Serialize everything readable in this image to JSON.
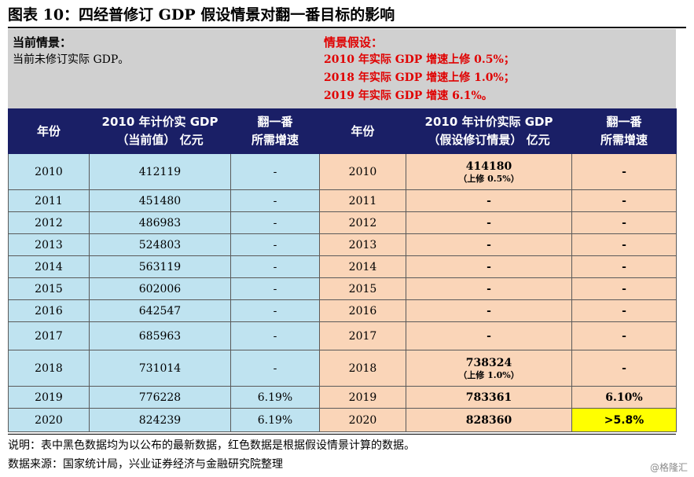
{
  "title": "图表 10：四经普修订 GDP 假设情景对翻一番目标的影响",
  "left_panel": {
    "heading": "当前情景：",
    "text": "当前未修订实际 GDP。"
  },
  "right_panel": {
    "heading": "情景假设：",
    "lines": [
      "2010 年实际 GDP 增速上修 0.5%；",
      "2018 年实际 GDP 增速上修 1.0%；",
      "2019 年实际 GDP 增速 6.1%。"
    ]
  },
  "headers": {
    "year_left": "年份",
    "gdp_left": [
      "2010 年计价实 GDP",
      "（当前值） 亿元"
    ],
    "rate_left": [
      "翻一番",
      "所需增速"
    ],
    "year_right": "年份",
    "gdp_right": [
      "2010 年计价实际 GDP",
      "（假设修订情景） 亿元"
    ],
    "rate_right": [
      "翻一番",
      "所需增速"
    ]
  },
  "rows": [
    {
      "year": "2010",
      "gdp": "412119",
      "gdp_red": false,
      "rate": "-",
      "rate_red": false,
      "year2": "2010",
      "gdp2": "414180",
      "gdp2_note": "（上修 0.5%）",
      "gdp2_red": true,
      "rate2": "-",
      "rate2_red": false,
      "rate2_highlight": false
    },
    {
      "year": "2011",
      "gdp": "451480",
      "gdp_red": false,
      "rate": "-",
      "rate_red": false,
      "year2": "2011",
      "gdp2": "-",
      "gdp2_note": "",
      "gdp2_red": false,
      "rate2": "-",
      "rate2_red": false,
      "rate2_highlight": false
    },
    {
      "year": "2012",
      "gdp": "486983",
      "gdp_red": false,
      "rate": "-",
      "rate_red": false,
      "year2": "2012",
      "gdp2": "-",
      "gdp2_note": "",
      "gdp2_red": false,
      "rate2": "-",
      "rate2_red": false,
      "rate2_highlight": false
    },
    {
      "year": "2013",
      "gdp": "524803",
      "gdp_red": false,
      "rate": "-",
      "rate_red": false,
      "year2": "2013",
      "gdp2": "-",
      "gdp2_note": "",
      "gdp2_red": false,
      "rate2": "-",
      "rate2_red": false,
      "rate2_highlight": false
    },
    {
      "year": "2014",
      "gdp": "563119",
      "gdp_red": false,
      "rate": "-",
      "rate_red": false,
      "year2": "2014",
      "gdp2": "-",
      "gdp2_note": "",
      "gdp2_red": false,
      "rate2": "-",
      "rate2_red": false,
      "rate2_highlight": false
    },
    {
      "year": "2015",
      "gdp": "602006",
      "gdp_red": false,
      "rate": "-",
      "rate_red": false,
      "year2": "2015",
      "gdp2": "-",
      "gdp2_note": "",
      "gdp2_red": false,
      "rate2": "-",
      "rate2_red": false,
      "rate2_highlight": false
    },
    {
      "year": "2016",
      "gdp": "642547",
      "gdp_red": false,
      "rate": "-",
      "rate_red": false,
      "year2": "2016",
      "gdp2": "-",
      "gdp2_note": "",
      "gdp2_red": false,
      "rate2": "-",
      "rate2_red": false,
      "rate2_highlight": false
    },
    {
      "year": "2017",
      "gdp": "685963",
      "gdp_red": false,
      "rate": "-",
      "rate_red": false,
      "year2": "2017",
      "gdp2": "-",
      "gdp2_note": "",
      "gdp2_red": false,
      "rate2": "-",
      "rate2_red": false,
      "rate2_highlight": false
    },
    {
      "year": "2018",
      "gdp": "731014",
      "gdp_red": false,
      "rate": "-",
      "rate_red": false,
      "year2": "2018",
      "gdp2": "738324",
      "gdp2_note": "（上修 1.0%）",
      "gdp2_red": true,
      "rate2": "-",
      "rate2_red": false,
      "rate2_highlight": false
    },
    {
      "year": "2019",
      "gdp": "776228",
      "gdp_red": true,
      "rate": "6.19%",
      "rate_red": true,
      "year2": "2019",
      "gdp2": "783361",
      "gdp2_note": "",
      "gdp2_red": true,
      "rate2": "6.10%",
      "rate2_red": true,
      "rate2_highlight": false
    },
    {
      "year": "2020",
      "gdp": "824239",
      "gdp_red": true,
      "rate": "6.19%",
      "rate_red": true,
      "year2": "2020",
      "gdp2": "828360",
      "gdp2_note": "",
      "gdp2_red": true,
      "rate2": ">5.8%",
      "rate2_red": true,
      "rate2_highlight": true
    }
  ],
  "note": "说明：表中黑色数据均为以公布的最新数据，红色数据是根据假设情景计算的数据。",
  "source": "数据来源：国家统计局，兴业证券经济与金融研究院整理",
  "watermark": "@格隆汇",
  "colors": {
    "header_bg": "#1a1f66",
    "left_cell_bg": "#bfe3f0",
    "right_cell_bg": "#fad5b8",
    "highlight_bg": "#ffff00",
    "red_text": "#e00000",
    "panel_bg": "#d0d0d0"
  }
}
